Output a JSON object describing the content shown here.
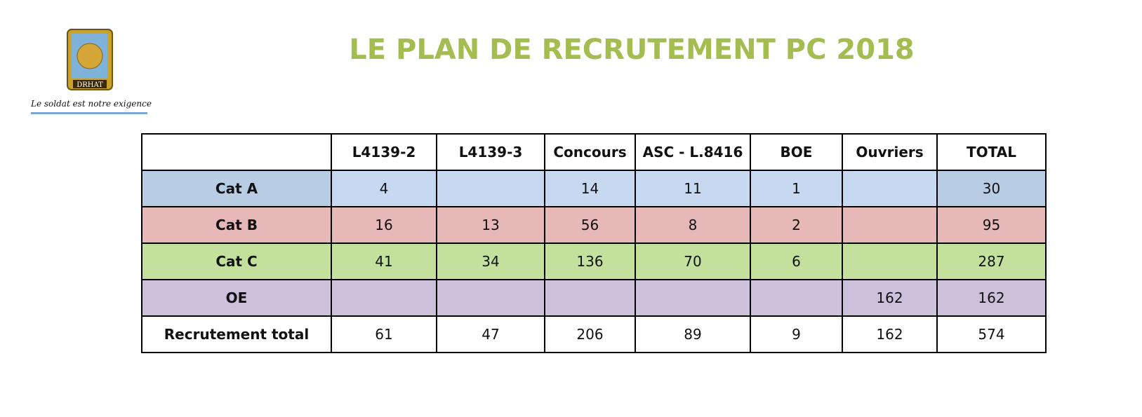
{
  "header": {
    "title": "LE PLAN DE RECRUTEMENT PC 2018",
    "logo_text": "DRHAT",
    "motto": "Le soldat est notre exigence"
  },
  "table": {
    "columns": [
      "L4139-2",
      "L4139-3",
      "Concours",
      "ASC - L.8416",
      "BOE",
      "Ouvriers",
      "TOTAL"
    ],
    "rows": [
      {
        "label": "Cat A",
        "cells": [
          4,
          null,
          14,
          11,
          1,
          null,
          30
        ]
      },
      {
        "label": "Cat B",
        "cells": [
          16,
          13,
          56,
          8,
          2,
          null,
          95
        ]
      },
      {
        "label": "Cat C",
        "cells": [
          41,
          34,
          136,
          70,
          6,
          null,
          287
        ]
      },
      {
        "label": "OE",
        "cells": [
          null,
          null,
          null,
          null,
          null,
          162,
          162
        ]
      },
      {
        "label": "Recrutement total",
        "cells": [
          61,
          47,
          206,
          89,
          9,
          162,
          574
        ]
      }
    ]
  }
}
